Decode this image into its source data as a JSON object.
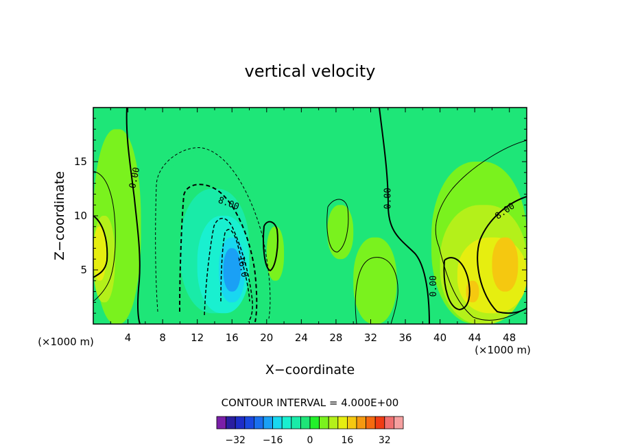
{
  "chart_data": {
    "type": "heatmap",
    "title": "vertical velocity",
    "xlabel": "X−coordinate",
    "ylabel": "Z−coordinate",
    "x_unit_left": "(×1000 m)",
    "x_unit_right": "(×1000 m)",
    "xlim": [
      0,
      50
    ],
    "ylim": [
      0,
      20
    ],
    "x_ticks": [
      4,
      8,
      12,
      16,
      20,
      24,
      28,
      32,
      36,
      40,
      44,
      48
    ],
    "y_ticks": [
      5,
      10,
      15
    ],
    "contour_interval_text": "CONTOUR INTERVAL = 4.000E+00",
    "colorbar": {
      "levels": [
        -36,
        -32,
        -28,
        -24,
        -20,
        -16,
        -12,
        -8,
        -4,
        0,
        4,
        8,
        12,
        16,
        20,
        24,
        28,
        32,
        36
      ],
      "tick_labels": [
        "−32",
        "−16",
        "0",
        "16",
        "32"
      ],
      "tick_values": [
        -32,
        -16,
        0,
        16,
        32
      ],
      "colors": [
        "#7a1fa8",
        "#2a1ea0",
        "#1e2dc8",
        "#1a48e0",
        "#1a6fee",
        "#1aa0f5",
        "#19d7f0",
        "#19f0d0",
        "#19eba8",
        "#1ee678",
        "#22f02a",
        "#7af21e",
        "#b4f01a",
        "#e6ee10",
        "#f5c810",
        "#f59910",
        "#f56a10",
        "#f03c14",
        "#f07070",
        "#f5a0a0"
      ]
    },
    "background_level_color": "#1ee678",
    "regions": [
      {
        "level": 4,
        "x_range": [
          0,
          5.5
        ],
        "z_range": [
          0,
          18
        ]
      },
      {
        "level": 8,
        "x_range": [
          0,
          2.5
        ],
        "z_range": [
          2,
          10
        ]
      },
      {
        "level": 12,
        "x_range": [
          0,
          1.5
        ],
        "z_range": [
          4,
          9
        ]
      },
      {
        "level": -4,
        "x_range": [
          7,
          19
        ],
        "z_range": [
          1,
          16
        ]
      },
      {
        "level": -8,
        "x_range": [
          10,
          18
        ],
        "z_range": [
          1,
          12.5
        ]
      },
      {
        "level": -12,
        "x_range": [
          12,
          18
        ],
        "z_range": [
          1,
          10
        ]
      },
      {
        "level": -16,
        "x_range": [
          14.5,
          17.5
        ],
        "z_range": [
          2,
          8
        ]
      },
      {
        "level": -20,
        "x_range": [
          15,
          17
        ],
        "z_range": [
          3,
          7
        ]
      },
      {
        "level": 4,
        "x_range": [
          20,
          22
        ],
        "z_range": [
          4,
          9
        ]
      },
      {
        "level": 4,
        "x_range": [
          27,
          30
        ],
        "z_range": [
          6,
          11
        ]
      },
      {
        "level": 4,
        "x_range": [
          30,
          35
        ],
        "z_range": [
          0,
          8
        ]
      },
      {
        "level": 4,
        "x_range": [
          39,
          50
        ],
        "z_range": [
          0,
          15
        ]
      },
      {
        "level": 8,
        "x_range": [
          40,
          50
        ],
        "z_range": [
          0,
          11
        ]
      },
      {
        "level": 12,
        "x_range": [
          42,
          50
        ],
        "z_range": [
          1,
          8
        ]
      },
      {
        "level": 16,
        "x_range": [
          43,
          44.5
        ],
        "z_range": [
          2,
          4
        ]
      },
      {
        "level": 16,
        "x_range": [
          46,
          49
        ],
        "z_range": [
          3,
          8
        ]
      }
    ],
    "contour_labels": [
      {
        "text": "0.00",
        "x": 4.8,
        "z": 13.5,
        "angle": -78
      },
      {
        "text": "8.00",
        "x": 15.6,
        "z": 11.1,
        "angle": 20
      },
      {
        "text": "16.0",
        "x": 17.2,
        "z": 5.3,
        "angle": 80
      },
      {
        "text": "0.00",
        "x": 34.0,
        "z": 11.6,
        "angle": -90
      },
      {
        "text": "0.00",
        "x": 39.3,
        "z": 3.5,
        "angle": -90
      },
      {
        "text": "8.00",
        "x": 47.5,
        "z": 10.4,
        "angle": -35
      }
    ]
  }
}
